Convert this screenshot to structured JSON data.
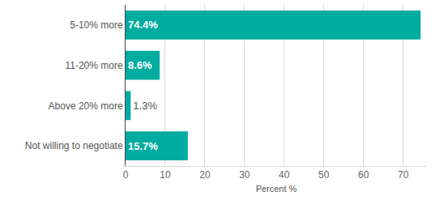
{
  "chart_data": {
    "type": "bar",
    "orientation": "horizontal",
    "categories": [
      "5-10% more",
      "11-20% more",
      "Above 20% more",
      "Not willing to negotiate"
    ],
    "values": [
      74.4,
      8.6,
      1.3,
      15.7
    ],
    "value_labels": [
      "74.4%",
      "8.6%",
      "1.3%",
      "15.7%"
    ],
    "data_labels": true,
    "color": "#00aba0",
    "x_label": "Percent %",
    "xlim": [
      0,
      76
    ],
    "xticks": [
      0,
      10,
      20,
      30,
      40,
      50,
      60,
      70
    ],
    "grid": true
  }
}
